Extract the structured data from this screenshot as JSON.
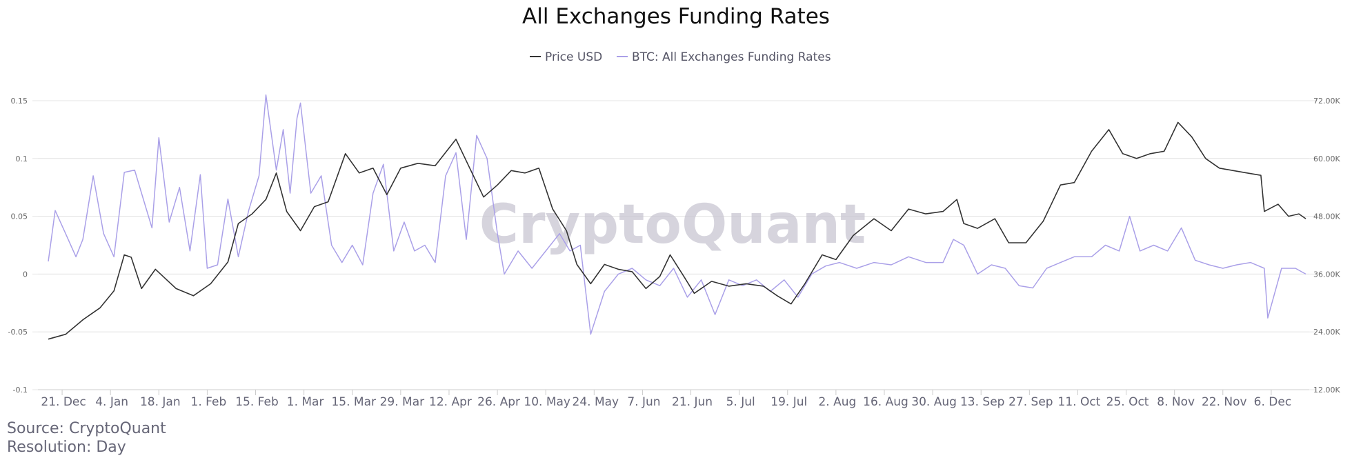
{
  "chart_data": {
    "type": "line",
    "title": "All Exchanges Funding Rates",
    "watermark": "CryptoQuant",
    "legend": {
      "placement": "top-center",
      "items": [
        "Price USD",
        "BTC: All Exchanges Funding Rates"
      ]
    },
    "xlabel": "",
    "x_tick_labels": [
      "21. Dec",
      "4. Jan",
      "18. Jan",
      "1. Feb",
      "15. Feb",
      "1. Mar",
      "15. Mar",
      "29. Mar",
      "12. Apr",
      "26. Apr",
      "10. May",
      "24. May",
      "7. Jun",
      "21. Jun",
      "5. Jul",
      "19. Jul",
      "2. Aug",
      "16. Aug",
      "30. Aug",
      "13. Sep",
      "27. Sep",
      "11. Oct",
      "25. Oct",
      "8. Nov",
      "22. Nov",
      "6. Dec"
    ],
    "x_range": [
      "2020-12-14",
      "2021-12-17"
    ],
    "y_left": {
      "label": "",
      "ticks": [
        "-0.1",
        "-0.05",
        "0",
        "0.05",
        "0.1",
        "0.15"
      ],
      "range": [
        -0.1,
        0.15
      ]
    },
    "y_right": {
      "label": "",
      "ticks": [
        "12.00K",
        "24.00K",
        "36.00K",
        "48.00K",
        "60.00K",
        "72.00K"
      ],
      "range": [
        12000,
        72000
      ]
    },
    "grid": true,
    "series": [
      {
        "name": "Price USD",
        "axis": "right",
        "color": "#333333",
        "points": [
          [
            "2020-12-17",
            22.5
          ],
          [
            "2020-12-22",
            23.5
          ],
          [
            "2020-12-27",
            26.5
          ],
          [
            "2021-01-01",
            29.0
          ],
          [
            "2021-01-05",
            32.5
          ],
          [
            "2021-01-08",
            40.0
          ],
          [
            "2021-01-10",
            39.5
          ],
          [
            "2021-01-13",
            33.0
          ],
          [
            "2021-01-17",
            37.0
          ],
          [
            "2021-01-20",
            35.0
          ],
          [
            "2021-01-23",
            33.0
          ],
          [
            "2021-01-28",
            31.5
          ],
          [
            "2021-02-02",
            34.0
          ],
          [
            "2021-02-07",
            38.5
          ],
          [
            "2021-02-10",
            46.5
          ],
          [
            "2021-02-14",
            48.5
          ],
          [
            "2021-02-18",
            51.5
          ],
          [
            "2021-02-21",
            57.0
          ],
          [
            "2021-02-24",
            49.0
          ],
          [
            "2021-02-28",
            45.0
          ],
          [
            "2021-03-04",
            50.0
          ],
          [
            "2021-03-08",
            51.0
          ],
          [
            "2021-03-13",
            61.0
          ],
          [
            "2021-03-17",
            57.0
          ],
          [
            "2021-03-21",
            58.0
          ],
          [
            "2021-03-25",
            52.5
          ],
          [
            "2021-03-29",
            58.0
          ],
          [
            "2021-04-03",
            59.0
          ],
          [
            "2021-04-08",
            58.5
          ],
          [
            "2021-04-14",
            64.0
          ],
          [
            "2021-04-18",
            58.0
          ],
          [
            "2021-04-22",
            52.0
          ],
          [
            "2021-04-26",
            54.5
          ],
          [
            "2021-04-30",
            57.5
          ],
          [
            "2021-05-04",
            57.0
          ],
          [
            "2021-05-08",
            58.0
          ],
          [
            "2021-05-12",
            49.5
          ],
          [
            "2021-05-16",
            45.0
          ],
          [
            "2021-05-19",
            38.0
          ],
          [
            "2021-05-23",
            34.0
          ],
          [
            "2021-05-27",
            38.0
          ],
          [
            "2021-05-31",
            37.0
          ],
          [
            "2021-06-04",
            36.5
          ],
          [
            "2021-06-08",
            33.0
          ],
          [
            "2021-06-12",
            35.5
          ],
          [
            "2021-06-15",
            40.0
          ],
          [
            "2021-06-19",
            35.5
          ],
          [
            "2021-06-22",
            32.0
          ],
          [
            "2021-06-27",
            34.5
          ],
          [
            "2021-07-02",
            33.5
          ],
          [
            "2021-07-07",
            34.0
          ],
          [
            "2021-07-12",
            33.5
          ],
          [
            "2021-07-16",
            31.5
          ],
          [
            "2021-07-20",
            29.8
          ],
          [
            "2021-07-24",
            34.0
          ],
          [
            "2021-07-29",
            40.0
          ],
          [
            "2021-08-02",
            39.0
          ],
          [
            "2021-08-07",
            44.0
          ],
          [
            "2021-08-13",
            47.5
          ],
          [
            "2021-08-18",
            45.0
          ],
          [
            "2021-08-23",
            49.5
          ],
          [
            "2021-08-28",
            48.5
          ],
          [
            "2021-09-02",
            49.0
          ],
          [
            "2021-09-06",
            51.5
          ],
          [
            "2021-09-08",
            46.5
          ],
          [
            "2021-09-12",
            45.5
          ],
          [
            "2021-09-17",
            47.5
          ],
          [
            "2021-09-21",
            42.5
          ],
          [
            "2021-09-26",
            42.5
          ],
          [
            "2021-10-01",
            47.0
          ],
          [
            "2021-10-06",
            54.5
          ],
          [
            "2021-10-10",
            55.0
          ],
          [
            "2021-10-15",
            61.5
          ],
          [
            "2021-10-20",
            66.0
          ],
          [
            "2021-10-24",
            61.0
          ],
          [
            "2021-10-28",
            60.0
          ],
          [
            "2021-11-01",
            61.0
          ],
          [
            "2021-11-05",
            61.5
          ],
          [
            "2021-11-09",
            67.5
          ],
          [
            "2021-11-13",
            64.5
          ],
          [
            "2021-11-17",
            60.0
          ],
          [
            "2021-11-21",
            58.0
          ],
          [
            "2021-11-25",
            57.5
          ],
          [
            "2021-11-29",
            57.0
          ],
          [
            "2021-12-03",
            56.5
          ],
          [
            "2021-12-04",
            49.0
          ],
          [
            "2021-12-08",
            50.5
          ],
          [
            "2021-12-11",
            48.0
          ],
          [
            "2021-12-14",
            48.5
          ],
          [
            "2021-12-16",
            47.5
          ]
        ],
        "unit_note": "K"
      },
      {
        "name": "BTC: All Exchanges Funding Rates",
        "axis": "left",
        "color": "#aaa0e8",
        "points": [
          [
            "2020-12-17",
            0.011
          ],
          [
            "2020-12-19",
            0.055
          ],
          [
            "2020-12-22",
            0.035
          ],
          [
            "2020-12-25",
            0.015
          ],
          [
            "2020-12-27",
            0.03
          ],
          [
            "2020-12-30",
            0.085
          ],
          [
            "2021-01-02",
            0.035
          ],
          [
            "2021-01-05",
            0.015
          ],
          [
            "2021-01-08",
            0.088
          ],
          [
            "2021-01-11",
            0.09
          ],
          [
            "2021-01-13",
            0.07
          ],
          [
            "2021-01-16",
            0.04
          ],
          [
            "2021-01-18",
            0.118
          ],
          [
            "2021-01-21",
            0.045
          ],
          [
            "2021-01-24",
            0.075
          ],
          [
            "2021-01-27",
            0.02
          ],
          [
            "2021-01-30",
            0.086
          ],
          [
            "2021-02-01",
            0.005
          ],
          [
            "2021-02-04",
            0.008
          ],
          [
            "2021-02-07",
            0.065
          ],
          [
            "2021-02-10",
            0.015
          ],
          [
            "2021-02-13",
            0.055
          ],
          [
            "2021-02-16",
            0.085
          ],
          [
            "2021-02-18",
            0.155
          ],
          [
            "2021-02-21",
            0.09
          ],
          [
            "2021-02-23",
            0.125
          ],
          [
            "2021-02-25",
            0.07
          ],
          [
            "2021-02-27",
            0.135
          ],
          [
            "2021-02-28",
            0.148
          ],
          [
            "2021-03-03",
            0.07
          ],
          [
            "2021-03-06",
            0.085
          ],
          [
            "2021-03-09",
            0.025
          ],
          [
            "2021-03-12",
            0.01
          ],
          [
            "2021-03-15",
            0.025
          ],
          [
            "2021-03-18",
            0.008
          ],
          [
            "2021-03-21",
            0.07
          ],
          [
            "2021-03-24",
            0.095
          ],
          [
            "2021-03-27",
            0.02
          ],
          [
            "2021-03-30",
            0.045
          ],
          [
            "2021-04-02",
            0.02
          ],
          [
            "2021-04-05",
            0.025
          ],
          [
            "2021-04-08",
            0.01
          ],
          [
            "2021-04-11",
            0.085
          ],
          [
            "2021-04-14",
            0.105
          ],
          [
            "2021-04-17",
            0.03
          ],
          [
            "2021-04-20",
            0.12
          ],
          [
            "2021-04-23",
            0.1
          ],
          [
            "2021-04-26",
            0.035
          ],
          [
            "2021-04-28",
            0.0
          ],
          [
            "2021-05-02",
            0.02
          ],
          [
            "2021-05-06",
            0.005
          ],
          [
            "2021-05-10",
            0.02
          ],
          [
            "2021-05-14",
            0.035
          ],
          [
            "2021-05-17",
            0.02
          ],
          [
            "2021-05-20",
            0.025
          ],
          [
            "2021-05-23",
            -0.052
          ],
          [
            "2021-05-27",
            -0.015
          ],
          [
            "2021-05-31",
            0.0
          ],
          [
            "2021-06-04",
            0.005
          ],
          [
            "2021-06-08",
            -0.005
          ],
          [
            "2021-06-12",
            -0.01
          ],
          [
            "2021-06-16",
            0.005
          ],
          [
            "2021-06-20",
            -0.02
          ],
          [
            "2021-06-24",
            -0.005
          ],
          [
            "2021-06-28",
            -0.035
          ],
          [
            "2021-07-02",
            -0.005
          ],
          [
            "2021-07-06",
            -0.01
          ],
          [
            "2021-07-10",
            -0.005
          ],
          [
            "2021-07-14",
            -0.015
          ],
          [
            "2021-07-18",
            -0.005
          ],
          [
            "2021-07-22",
            -0.02
          ],
          [
            "2021-07-26",
            0.0
          ],
          [
            "2021-07-30",
            0.007
          ],
          [
            "2021-08-03",
            0.01
          ],
          [
            "2021-08-08",
            0.005
          ],
          [
            "2021-08-13",
            0.01
          ],
          [
            "2021-08-18",
            0.008
          ],
          [
            "2021-08-23",
            0.015
          ],
          [
            "2021-08-28",
            0.01
          ],
          [
            "2021-09-02",
            0.01
          ],
          [
            "2021-09-05",
            0.03
          ],
          [
            "2021-09-08",
            0.025
          ],
          [
            "2021-09-12",
            0.0
          ],
          [
            "2021-09-16",
            0.008
          ],
          [
            "2021-09-20",
            0.005
          ],
          [
            "2021-09-24",
            -0.01
          ],
          [
            "2021-09-28",
            -0.012
          ],
          [
            "2021-10-02",
            0.005
          ],
          [
            "2021-10-06",
            0.01
          ],
          [
            "2021-10-10",
            0.015
          ],
          [
            "2021-10-15",
            0.015
          ],
          [
            "2021-10-19",
            0.025
          ],
          [
            "2021-10-23",
            0.02
          ],
          [
            "2021-10-26",
            0.05
          ],
          [
            "2021-10-29",
            0.02
          ],
          [
            "2021-11-02",
            0.025
          ],
          [
            "2021-11-06",
            0.02
          ],
          [
            "2021-11-10",
            0.04
          ],
          [
            "2021-11-14",
            0.012
          ],
          [
            "2021-11-18",
            0.008
          ],
          [
            "2021-11-22",
            0.005
          ],
          [
            "2021-11-26",
            0.008
          ],
          [
            "2021-11-30",
            0.01
          ],
          [
            "2021-12-04",
            0.005
          ],
          [
            "2021-12-05",
            -0.038
          ],
          [
            "2021-12-09",
            0.005
          ],
          [
            "2021-12-13",
            0.005
          ],
          [
            "2021-12-16",
            0.0
          ]
        ]
      }
    ]
  },
  "footer": {
    "source": "Source: CryptoQuant",
    "resolution": "Resolution: Day"
  }
}
